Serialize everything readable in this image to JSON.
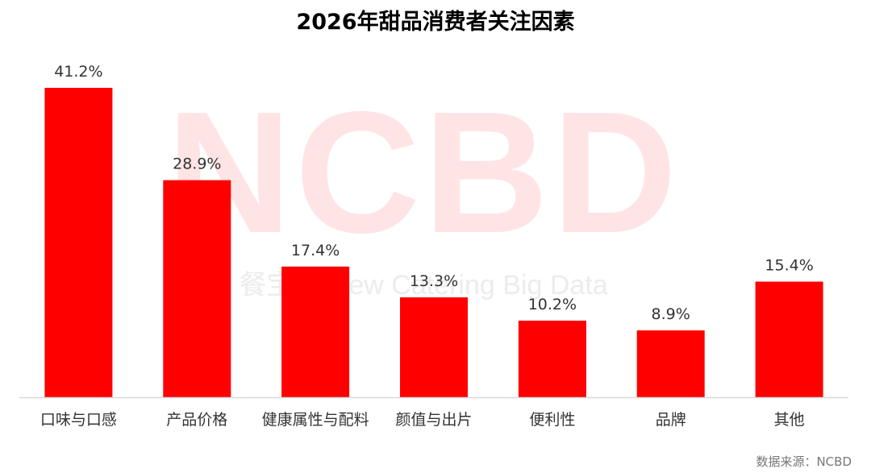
{
  "watermark": {
    "logo": "NCBD",
    "tagline": "餐宝典 New Catering Big Data"
  },
  "source": "数据来源：NCBD",
  "colors": {
    "bar": "#ff0000",
    "axis": "#d9d9d9"
  },
  "chart_data": {
    "type": "bar",
    "title": "2026年甜品消费者关注因素",
    "xlabel": "",
    "ylabel": "",
    "categories": [
      "口味与口感",
      "产品价格",
      "健康属性与配料",
      "颜值与出片",
      "便利性",
      "品牌",
      "其他"
    ],
    "values": [
      41.2,
      28.9,
      17.4,
      13.3,
      10.2,
      8.9,
      15.4
    ],
    "value_labels": [
      "41.2%",
      "28.9%",
      "17.4%",
      "13.3%",
      "10.2%",
      "8.9%",
      "15.4%"
    ],
    "unit": "%",
    "ylim": [
      0,
      41.2
    ],
    "grid": false,
    "legend": "none"
  }
}
